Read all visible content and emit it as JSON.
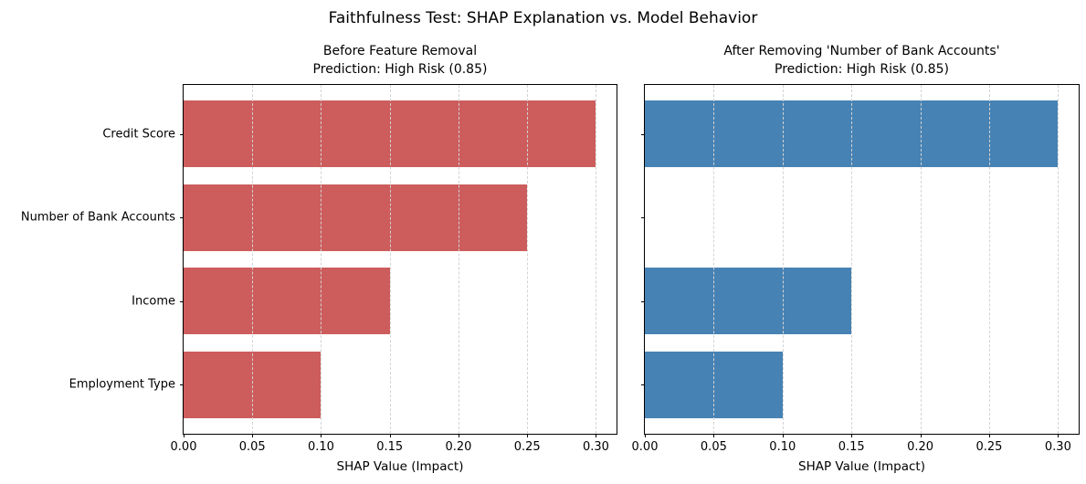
{
  "figure": {
    "suptitle": "Faithfulness Test: SHAP Explanation vs. Model Behavior",
    "background": "#ffffff"
  },
  "style": {
    "grid_color": "#d3d3d3",
    "spine_color": "#000000",
    "text_color": "#000000"
  },
  "chart_data": [
    {
      "type": "bar",
      "orientation": "horizontal",
      "title": "Before Feature Removal\nPrediction: High Risk (0.85)",
      "categories": [
        "Credit Score",
        "Number of Bank Accounts",
        "Income",
        "Employment Type"
      ],
      "values": [
        0.3,
        0.25,
        0.15,
        0.1
      ],
      "bar_color": "#CD5C5C",
      "xlabel": "SHAP Value (Impact)",
      "xlim": [
        0,
        0.315
      ],
      "xtick_labels": [
        "0.00",
        "0.05",
        "0.10",
        "0.15",
        "0.20",
        "0.25",
        "0.30"
      ],
      "grid": "vertical-dashed",
      "show_ytick_labels": true
    },
    {
      "type": "bar",
      "orientation": "horizontal",
      "title": "After Removing 'Number of Bank Accounts'\nPrediction: High Risk (0.85)",
      "categories": [
        "Credit Score",
        "Number of Bank Accounts",
        "Income",
        "Employment Type"
      ],
      "values": [
        0.3,
        0,
        0.15,
        0.1
      ],
      "bar_color": "#4682B4",
      "xlabel": "SHAP Value (Impact)",
      "xlim": [
        0,
        0.315
      ],
      "xtick_labels": [
        "0.00",
        "0.05",
        "0.10",
        "0.15",
        "0.20",
        "0.25",
        "0.30"
      ],
      "grid": "vertical-dashed",
      "show_ytick_labels": false
    }
  ]
}
